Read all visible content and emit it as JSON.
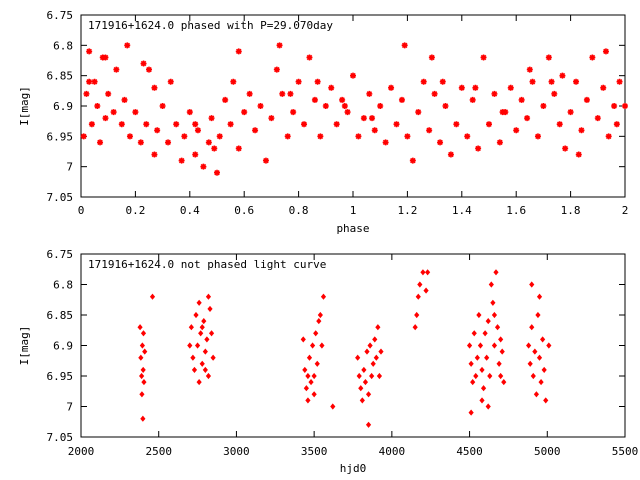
{
  "chart_data": [
    {
      "type": "scatter",
      "title": "171916+1624.0 phased with P=29.070day",
      "xlabel": "phase",
      "ylabel": "I[mag]",
      "xlim": [
        0,
        2
      ],
      "ylim": [
        7.05,
        6.75
      ],
      "y_inverted": true,
      "x_ticks": [
        "0",
        "0.2",
        "0.4",
        "0.6",
        "0.8",
        "1",
        "1.2",
        "1.4",
        "1.6",
        "1.8",
        "2"
      ],
      "y_ticks": [
        "6.75",
        "6.8",
        "6.85",
        "6.9",
        "6.95",
        "7",
        "7.05"
      ],
      "marker_color": "#ff0000",
      "marker": "asterisk",
      "series": [
        {
          "points": [
            [
              0.01,
              6.95
            ],
            [
              0.02,
              6.88
            ],
            [
              0.03,
              6.81
            ],
            [
              0.04,
              6.93
            ],
            [
              0.05,
              6.86
            ],
            [
              0.06,
              6.9
            ],
            [
              0.07,
              6.96
            ],
            [
              0.08,
              6.82
            ],
            [
              0.09,
              6.92
            ],
            [
              0.1,
              6.88
            ],
            [
              0.12,
              6.91
            ],
            [
              0.13,
              6.84
            ],
            [
              0.15,
              6.93
            ],
            [
              0.16,
              6.89
            ],
            [
              0.18,
              6.95
            ],
            [
              0.2,
              6.91
            ],
            [
              0.22,
              6.96
            ],
            [
              0.24,
              6.93
            ],
            [
              0.25,
              6.84
            ],
            [
              0.27,
              6.98
            ],
            [
              0.28,
              6.94
            ],
            [
              0.3,
              6.9
            ],
            [
              0.32,
              6.96
            ],
            [
              0.33,
              6.86
            ],
            [
              0.35,
              6.93
            ],
            [
              0.37,
              6.99
            ],
            [
              0.38,
              6.95
            ],
            [
              0.4,
              6.91
            ],
            [
              0.42,
              6.98
            ],
            [
              0.43,
              6.94
            ],
            [
              0.45,
              7.0
            ],
            [
              0.47,
              6.96
            ],
            [
              0.48,
              6.92
            ],
            [
              0.5,
              7.01
            ],
            [
              0.51,
              6.95
            ],
            [
              0.53,
              6.89
            ],
            [
              0.55,
              6.93
            ],
            [
              0.56,
              6.86
            ],
            [
              0.58,
              6.97
            ],
            [
              0.6,
              6.91
            ],
            [
              0.62,
              6.88
            ],
            [
              0.64,
              6.94
            ],
            [
              0.66,
              6.9
            ],
            [
              0.68,
              6.99
            ],
            [
              0.7,
              6.92
            ],
            [
              0.72,
              6.84
            ],
            [
              0.74,
              6.88
            ],
            [
              0.76,
              6.95
            ],
            [
              0.78,
              6.91
            ],
            [
              0.8,
              6.86
            ],
            [
              0.82,
              6.93
            ],
            [
              0.84,
              6.82
            ],
            [
              0.86,
              6.89
            ],
            [
              0.88,
              6.95
            ],
            [
              0.9,
              6.9
            ],
            [
              0.92,
              6.87
            ],
            [
              0.94,
              6.93
            ],
            [
              0.96,
              6.89
            ],
            [
              0.98,
              6.91
            ],
            [
              1.0,
              6.85
            ],
            [
              1.02,
              6.95
            ],
            [
              1.04,
              6.92
            ],
            [
              1.06,
              6.88
            ],
            [
              1.08,
              6.94
            ],
            [
              1.1,
              6.9
            ],
            [
              1.12,
              6.96
            ],
            [
              1.14,
              6.87
            ],
            [
              1.16,
              6.93
            ],
            [
              1.18,
              6.89
            ],
            [
              1.2,
              6.95
            ],
            [
              1.22,
              6.99
            ],
            [
              1.24,
              6.91
            ],
            [
              1.26,
              6.86
            ],
            [
              1.28,
              6.94
            ],
            [
              1.3,
              6.88
            ],
            [
              1.32,
              6.96
            ],
            [
              1.34,
              6.9
            ],
            [
              1.36,
              6.98
            ],
            [
              1.38,
              6.93
            ],
            [
              1.4,
              6.87
            ],
            [
              1.42,
              6.95
            ],
            [
              1.44,
              6.89
            ],
            [
              1.46,
              6.97
            ],
            [
              1.48,
              6.82
            ],
            [
              1.5,
              6.93
            ],
            [
              1.52,
              6.88
            ],
            [
              1.54,
              6.96
            ],
            [
              1.56,
              6.91
            ],
            [
              1.58,
              6.87
            ],
            [
              1.6,
              6.94
            ],
            [
              1.62,
              6.89
            ],
            [
              1.64,
              6.92
            ],
            [
              1.66,
              6.86
            ],
            [
              1.68,
              6.95
            ],
            [
              1.7,
              6.9
            ],
            [
              1.72,
              6.82
            ],
            [
              1.74,
              6.88
            ],
            [
              1.76,
              6.93
            ],
            [
              1.78,
              6.97
            ],
            [
              1.8,
              6.91
            ],
            [
              1.82,
              6.86
            ],
            [
              1.84,
              6.94
            ],
            [
              1.86,
              6.89
            ],
            [
              1.88,
              6.82
            ],
            [
              1.9,
              6.92
            ],
            [
              1.92,
              6.87
            ],
            [
              1.94,
              6.95
            ],
            [
              1.96,
              6.9
            ],
            [
              1.98,
              6.86
            ],
            [
              2.0,
              6.9
            ],
            [
              0.03,
              6.86
            ],
            [
              0.09,
              6.82
            ],
            [
              0.17,
              6.8
            ],
            [
              0.23,
              6.83
            ],
            [
              0.27,
              6.87
            ],
            [
              0.42,
              6.93
            ],
            [
              0.49,
              6.97
            ],
            [
              0.58,
              6.81
            ],
            [
              0.73,
              6.8
            ],
            [
              0.77,
              6.88
            ],
            [
              0.87,
              6.86
            ],
            [
              0.97,
              6.9
            ],
            [
              1.07,
              6.92
            ],
            [
              1.19,
              6.8
            ],
            [
              1.29,
              6.82
            ],
            [
              1.33,
              6.86
            ],
            [
              1.45,
              6.87
            ],
            [
              1.55,
              6.91
            ],
            [
              1.65,
              6.84
            ],
            [
              1.73,
              6.86
            ],
            [
              1.77,
              6.85
            ],
            [
              1.83,
              6.98
            ],
            [
              1.93,
              6.81
            ],
            [
              1.97,
              6.93
            ]
          ]
        }
      ]
    },
    {
      "type": "scatter",
      "title": "171916+1624.0 not phased light curve",
      "xlabel": "hjd0",
      "ylabel": "I[mag]",
      "xlim": [
        2000,
        5500
      ],
      "ylim": [
        7.05,
        6.75
      ],
      "y_inverted": true,
      "x_ticks": [
        "2000",
        "2500",
        "3000",
        "3500",
        "4000",
        "4500",
        "5000",
        "5500"
      ],
      "y_ticks": [
        "6.75",
        "6.8",
        "6.85",
        "6.9",
        "6.95",
        "7",
        "7.05"
      ],
      "marker_color": "#ff0000",
      "marker": "diamond",
      "series": [
        {
          "points": [
            [
              2380,
              6.87
            ],
            [
              2385,
              6.92
            ],
            [
              2390,
              6.95
            ],
            [
              2392,
              6.98
            ],
            [
              2395,
              6.9
            ],
            [
              2398,
              7.02
            ],
            [
              2400,
              6.94
            ],
            [
              2402,
              6.88
            ],
            [
              2405,
              6.96
            ],
            [
              2410,
              6.91
            ],
            [
              2460,
              6.82
            ],
            [
              2700,
              6.9
            ],
            [
              2710,
              6.87
            ],
            [
              2720,
              6.92
            ],
            [
              2730,
              6.94
            ],
            [
              2740,
              6.85
            ],
            [
              2750,
              6.9
            ],
            [
              2760,
              6.96
            ],
            [
              2770,
              6.88
            ],
            [
              2780,
              6.93
            ],
            [
              2790,
              6.86
            ],
            [
              2800,
              6.91
            ],
            [
              2810,
              6.89
            ],
            [
              2820,
              6.95
            ],
            [
              2830,
              6.84
            ],
            [
              2840,
              6.88
            ],
            [
              2850,
              6.92
            ],
            [
              2760,
              6.83
            ],
            [
              2780,
              6.87
            ],
            [
              2800,
              6.94
            ],
            [
              2820,
              6.82
            ],
            [
              3430,
              6.89
            ],
            [
              3440,
              6.94
            ],
            [
              3450,
              6.97
            ],
            [
              3460,
              6.99
            ],
            [
              3470,
              6.92
            ],
            [
              3480,
              6.96
            ],
            [
              3490,
              6.9
            ],
            [
              3500,
              6.95
            ],
            [
              3510,
              6.88
            ],
            [
              3520,
              6.93
            ],
            [
              3530,
              6.86
            ],
            [
              3540,
              6.85
            ],
            [
              3550,
              6.9
            ],
            [
              3560,
              6.82
            ],
            [
              3460,
              6.95
            ],
            [
              3500,
              6.98
            ],
            [
              3620,
              7.0
            ],
            [
              3780,
              6.92
            ],
            [
              3790,
              6.95
            ],
            [
              3800,
              6.97
            ],
            [
              3810,
              6.99
            ],
            [
              3820,
              6.94
            ],
            [
              3830,
              6.96
            ],
            [
              3840,
              6.91
            ],
            [
              3850,
              6.98
            ],
            [
              3860,
              6.9
            ],
            [
              3870,
              6.95
            ],
            [
              3880,
              6.93
            ],
            [
              3890,
              6.89
            ],
            [
              3900,
              6.92
            ],
            [
              3910,
              6.87
            ],
            [
              3920,
              6.95
            ],
            [
              3930,
              6.91
            ],
            [
              3850,
              7.03
            ],
            [
              4150,
              6.87
            ],
            [
              4160,
              6.85
            ],
            [
              4170,
              6.82
            ],
            [
              4180,
              6.8
            ],
            [
              4200,
              6.78
            ],
            [
              4220,
              6.81
            ],
            [
              4230,
              6.78
            ],
            [
              4500,
              6.9
            ],
            [
              4510,
              6.93
            ],
            [
              4520,
              6.96
            ],
            [
              4530,
              6.88
            ],
            [
              4540,
              6.95
            ],
            [
              4550,
              6.92
            ],
            [
              4560,
              6.85
            ],
            [
              4570,
              6.9
            ],
            [
              4580,
              6.94
            ],
            [
              4590,
              6.97
            ],
            [
              4600,
              6.88
            ],
            [
              4610,
              6.92
            ],
            [
              4620,
              6.86
            ],
            [
              4630,
              6.95
            ],
            [
              4640,
              6.8
            ],
            [
              4650,
              6.83
            ],
            [
              4660,
              6.9
            ],
            [
              4670,
              6.78
            ],
            [
              4680,
              6.87
            ],
            [
              4690,
              6.93
            ],
            [
              4700,
              6.89
            ],
            [
              4710,
              6.91
            ],
            [
              4720,
              6.96
            ],
            [
              4580,
              6.99
            ],
            [
              4620,
              7.0
            ],
            [
              4660,
              6.85
            ],
            [
              4700,
              6.95
            ],
            [
              4510,
              7.01
            ],
            [
              4880,
              6.9
            ],
            [
              4890,
              6.93
            ],
            [
              4900,
              6.87
            ],
            [
              4910,
              6.95
            ],
            [
              4920,
              6.91
            ],
            [
              4930,
              6.98
            ],
            [
              4940,
              6.85
            ],
            [
              4950,
              6.92
            ],
            [
              4960,
              6.96
            ],
            [
              4970,
              6.89
            ],
            [
              4980,
              6.94
            ],
            [
              4990,
              6.99
            ],
            [
              5010,
              6.9
            ],
            [
              4900,
              6.8
            ],
            [
              4950,
              6.82
            ]
          ]
        }
      ]
    }
  ]
}
